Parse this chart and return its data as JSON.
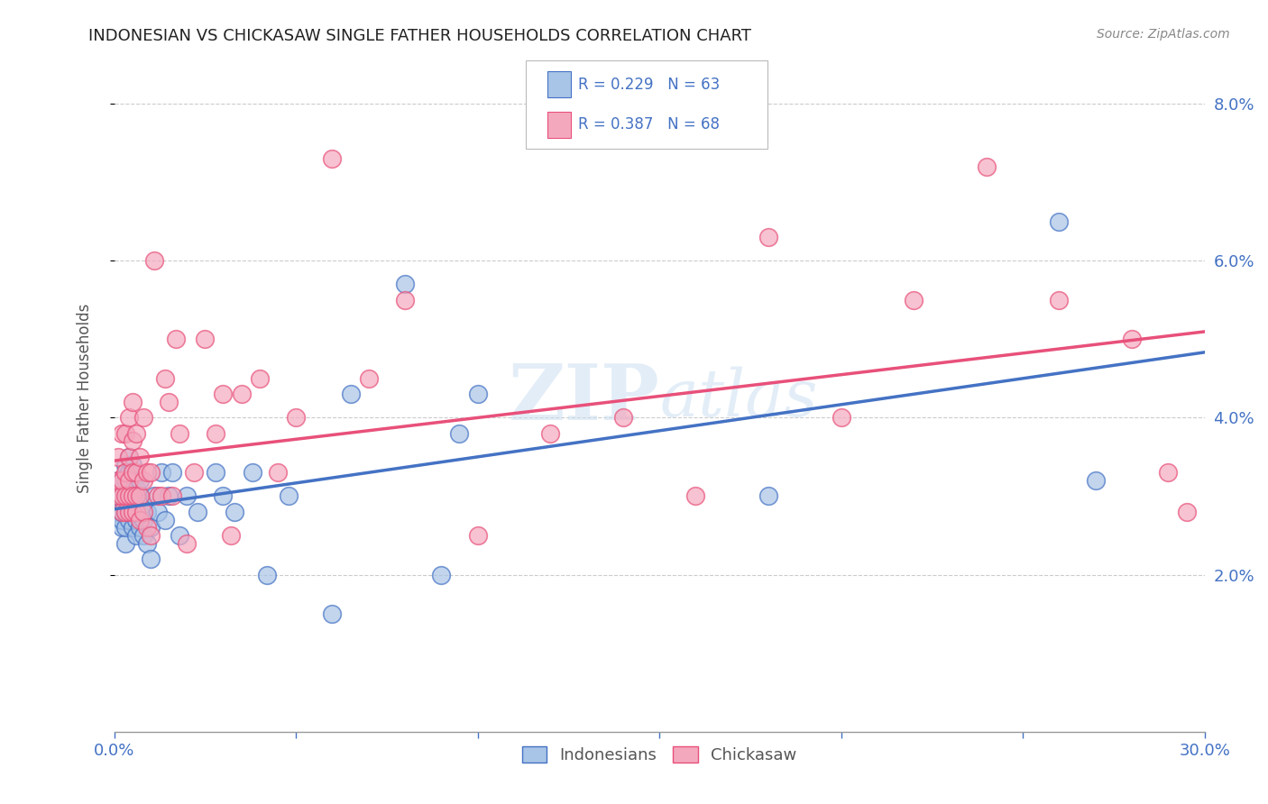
{
  "title": "INDONESIAN VS CHICKASAW SINGLE FATHER HOUSEHOLDS CORRELATION CHART",
  "source": "Source: ZipAtlas.com",
  "ylabel": "Single Father Households",
  "xlim": [
    0.0,
    0.3
  ],
  "ylim": [
    0.0,
    0.085
  ],
  "xticks": [
    0.0,
    0.05,
    0.1,
    0.15,
    0.2,
    0.25,
    0.3
  ],
  "xticklabels": [
    "0.0%",
    "",
    "",
    "",
    "",
    "",
    "30.0%"
  ],
  "yticks": [
    0.02,
    0.04,
    0.06,
    0.08
  ],
  "yticklabels_right": [
    "2.0%",
    "4.0%",
    "6.0%",
    "8.0%"
  ],
  "indonesian_color": "#a8c4e6",
  "chickasaw_color": "#f4a8be",
  "indonesian_line_color": "#4472c4",
  "chickasaw_line_color": "#e8507a",
  "legend_label1": "Indonesians",
  "legend_label2": "Chickasaw",
  "watermark": "ZIPatlas",
  "indonesian_x": [
    0.001,
    0.001,
    0.001,
    0.002,
    0.002,
    0.002,
    0.002,
    0.002,
    0.003,
    0.003,
    0.003,
    0.003,
    0.003,
    0.003,
    0.004,
    0.004,
    0.004,
    0.004,
    0.004,
    0.005,
    0.005,
    0.005,
    0.005,
    0.005,
    0.006,
    0.006,
    0.006,
    0.006,
    0.007,
    0.007,
    0.007,
    0.007,
    0.008,
    0.008,
    0.008,
    0.009,
    0.009,
    0.01,
    0.01,
    0.011,
    0.012,
    0.013,
    0.014,
    0.015,
    0.016,
    0.018,
    0.02,
    0.023,
    0.028,
    0.03,
    0.033,
    0.038,
    0.042,
    0.048,
    0.06,
    0.065,
    0.08,
    0.09,
    0.095,
    0.1,
    0.18,
    0.26,
    0.27
  ],
  "indonesian_y": [
    0.028,
    0.03,
    0.032,
    0.026,
    0.027,
    0.028,
    0.03,
    0.032,
    0.024,
    0.026,
    0.028,
    0.03,
    0.032,
    0.034,
    0.027,
    0.029,
    0.031,
    0.033,
    0.035,
    0.026,
    0.028,
    0.03,
    0.032,
    0.034,
    0.025,
    0.027,
    0.029,
    0.031,
    0.026,
    0.028,
    0.03,
    0.032,
    0.025,
    0.027,
    0.029,
    0.024,
    0.028,
    0.022,
    0.026,
    0.03,
    0.028,
    0.033,
    0.027,
    0.03,
    0.033,
    0.025,
    0.03,
    0.028,
    0.033,
    0.03,
    0.028,
    0.033,
    0.02,
    0.03,
    0.015,
    0.043,
    0.057,
    0.02,
    0.038,
    0.043,
    0.03,
    0.065,
    0.032
  ],
  "chickasaw_x": [
    0.001,
    0.001,
    0.001,
    0.002,
    0.002,
    0.002,
    0.002,
    0.003,
    0.003,
    0.003,
    0.003,
    0.004,
    0.004,
    0.004,
    0.004,
    0.004,
    0.005,
    0.005,
    0.005,
    0.005,
    0.005,
    0.006,
    0.006,
    0.006,
    0.006,
    0.007,
    0.007,
    0.007,
    0.008,
    0.008,
    0.008,
    0.009,
    0.009,
    0.01,
    0.01,
    0.011,
    0.012,
    0.013,
    0.014,
    0.015,
    0.016,
    0.017,
    0.018,
    0.02,
    0.022,
    0.025,
    0.028,
    0.03,
    0.032,
    0.035,
    0.04,
    0.045,
    0.05,
    0.06,
    0.07,
    0.08,
    0.1,
    0.12,
    0.14,
    0.16,
    0.18,
    0.2,
    0.22,
    0.24,
    0.26,
    0.28,
    0.29,
    0.295
  ],
  "chickasaw_y": [
    0.03,
    0.032,
    0.035,
    0.028,
    0.03,
    0.032,
    0.038,
    0.028,
    0.03,
    0.033,
    0.038,
    0.028,
    0.03,
    0.032,
    0.035,
    0.04,
    0.028,
    0.03,
    0.033,
    0.037,
    0.042,
    0.028,
    0.03,
    0.033,
    0.038,
    0.027,
    0.03,
    0.035,
    0.028,
    0.032,
    0.04,
    0.026,
    0.033,
    0.025,
    0.033,
    0.06,
    0.03,
    0.03,
    0.045,
    0.042,
    0.03,
    0.05,
    0.038,
    0.024,
    0.033,
    0.05,
    0.038,
    0.043,
    0.025,
    0.043,
    0.045,
    0.033,
    0.04,
    0.073,
    0.045,
    0.055,
    0.025,
    0.038,
    0.04,
    0.03,
    0.063,
    0.04,
    0.055,
    0.072,
    0.055,
    0.05,
    0.033,
    0.028
  ]
}
